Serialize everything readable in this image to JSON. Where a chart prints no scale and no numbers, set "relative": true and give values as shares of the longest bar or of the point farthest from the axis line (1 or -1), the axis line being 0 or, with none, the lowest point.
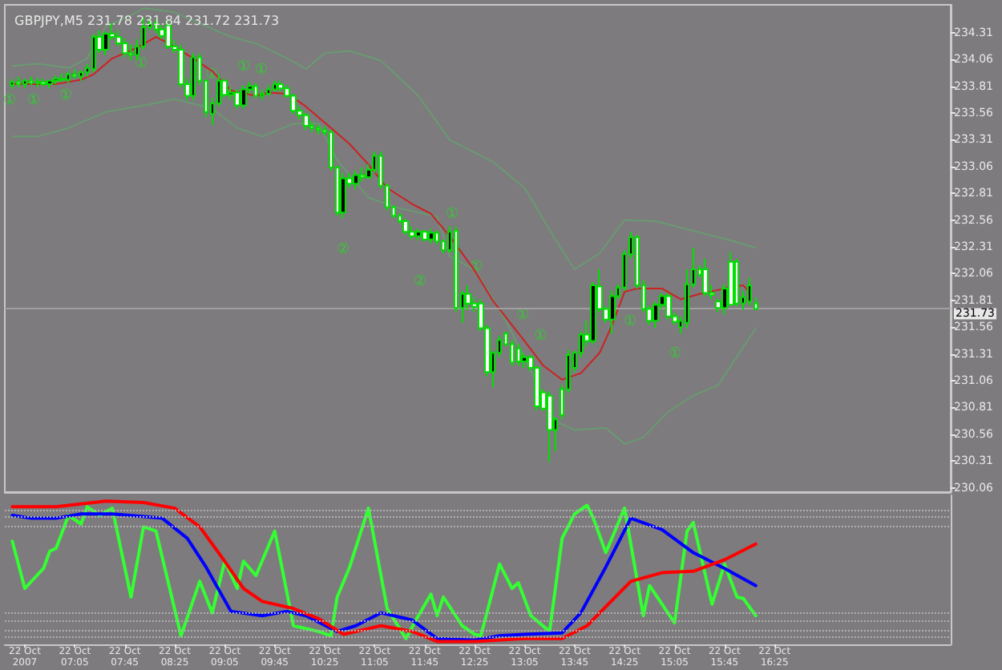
{
  "chart_data": [
    {
      "type": "candlestick",
      "title": "GBPJPY,M5 231.78 231.84 231.72 231.73",
      "xlim": [
        "2007-10-22T06:09",
        "2007-10-22T18:46"
      ],
      "ylim": [
        230.02,
        234.57
      ],
      "yticks": [
        230.06,
        230.31,
        230.56,
        230.81,
        231.06,
        231.31,
        231.56,
        231.81,
        232.06,
        232.31,
        232.56,
        232.81,
        233.06,
        233.31,
        233.56,
        233.81,
        234.06,
        234.31
      ],
      "tick_labels": "y",
      "ref_lines": [
        {
          "axis": "y",
          "value": 231.73,
          "label": "231.73",
          "color": "#a0a0a0",
          "line_style": "solid"
        }
      ],
      "annotations": [
        "①",
        "①",
        "①",
        "①",
        "①",
        "①",
        "①",
        "①",
        "②",
        "①",
        "②",
        "①",
        "①",
        "①",
        "①"
      ],
      "series": [
        {
          "type": "line",
          "color": "#6a9a72",
          "x": [
            "2007-10-22T06:15",
            "2007-10-22T06:35",
            "2007-10-22T07:00",
            "2007-10-22T07:15",
            "2007-10-22T07:30",
            "2007-10-22T07:50",
            "2007-10-22T08:00",
            "2007-10-22T08:25",
            "2007-10-22T08:40",
            "2007-10-22T09:10",
            "2007-10-22T09:30",
            "2007-10-22T09:55",
            "2007-10-22T10:10",
            "2007-10-22T10:25",
            "2007-10-22T10:45",
            "2007-10-22T11:10",
            "2007-10-22T11:40",
            "2007-10-22T12:05",
            "2007-10-22T12:40",
            "2007-10-22T13:05",
            "2007-10-22T13:30",
            "2007-10-22T13:45",
            "2007-10-22T14:05",
            "2007-10-22T14:25",
            "2007-10-22T14:50",
            "2007-10-22T15:50",
            "2007-10-22T16:10"
          ],
          "values": [
            234.0,
            234.02,
            233.98,
            234.07,
            234.37,
            234.47,
            234.54,
            234.5,
            234.42,
            234.27,
            234.21,
            234.07,
            233.97,
            234.12,
            234.14,
            234.05,
            233.72,
            233.31,
            233.1,
            232.86,
            232.37,
            232.1,
            232.25,
            232.56,
            232.55,
            232.37,
            232.3
          ]
        },
        {
          "type": "line",
          "color": "#6a9a72",
          "x": [
            "2007-10-22T06:15",
            "2007-10-22T06:35",
            "2007-10-22T07:00",
            "2007-10-22T07:30",
            "2007-10-22T08:05",
            "2007-10-22T08:25",
            "2007-10-22T08:55",
            "2007-10-22T09:15",
            "2007-10-22T09:35",
            "2007-10-22T10:00",
            "2007-10-22T10:20",
            "2007-10-22T10:35",
            "2007-10-22T11:00",
            "2007-10-22T11:25",
            "2007-10-22T11:55",
            "2007-10-22T12:05",
            "2007-10-22T12:25",
            "2007-10-22T12:50",
            "2007-10-22T13:30",
            "2007-10-22T13:45",
            "2007-10-22T14:10",
            "2007-10-22T14:25",
            "2007-10-22T14:40",
            "2007-10-22T15:00",
            "2007-10-22T15:20",
            "2007-10-22T15:40",
            "2007-10-22T16:10"
          ],
          "values": [
            233.34,
            233.34,
            233.42,
            233.57,
            233.64,
            233.69,
            233.6,
            233.42,
            233.34,
            233.46,
            233.46,
            233.12,
            232.77,
            232.67,
            232.59,
            232.22,
            232.1,
            231.62,
            230.68,
            230.6,
            230.62,
            230.47,
            230.53,
            230.77,
            230.92,
            231.02,
            231.55
          ]
        },
        {
          "type": "line",
          "color": "#cc2222",
          "x": [
            "2007-10-22T06:15",
            "2007-10-22T06:50",
            "2007-10-22T07:10",
            "2007-10-22T07:20",
            "2007-10-22T07:35",
            "2007-10-22T07:55",
            "2007-10-22T08:10",
            "2007-10-22T08:20",
            "2007-10-22T08:40",
            "2007-10-22T08:55",
            "2007-10-22T09:10",
            "2007-10-22T09:30",
            "2007-10-22T09:40",
            "2007-10-22T09:55",
            "2007-10-22T10:10",
            "2007-10-22T10:25",
            "2007-10-22T10:45",
            "2007-10-22T11:00",
            "2007-10-22T11:15",
            "2007-10-22T11:35",
            "2007-10-22T11:50",
            "2007-10-22T12:05",
            "2007-10-22T12:25",
            "2007-10-22T12:40",
            "2007-10-22T13:05",
            "2007-10-22T13:20",
            "2007-10-22T13:35",
            "2007-10-22T13:50",
            "2007-10-22T14:05",
            "2007-10-22T14:15",
            "2007-10-22T14:25",
            "2007-10-22T14:35",
            "2007-10-22T14:55",
            "2007-10-22T15:10",
            "2007-10-22T15:25",
            "2007-10-22T15:45",
            "2007-10-22T16:00",
            "2007-10-22T16:05"
          ],
          "values": [
            233.83,
            233.83,
            233.87,
            233.92,
            234.07,
            234.17,
            234.27,
            234.21,
            234.07,
            233.95,
            233.77,
            233.72,
            233.75,
            233.74,
            233.62,
            233.47,
            233.27,
            233.08,
            232.86,
            232.71,
            232.62,
            232.41,
            232.09,
            231.8,
            231.43,
            231.2,
            231.07,
            231.13,
            231.32,
            231.58,
            231.89,
            231.92,
            231.92,
            231.82,
            231.87,
            231.92,
            231.95,
            231.89
          ]
        },
        {
          "type": "candlestick",
          "color": "#00e000",
          "x": [
            "2007-10-22T06:15",
            "2007-10-22T06:20",
            "2007-10-22T06:25",
            "2007-10-22T06:30",
            "2007-10-22T06:35",
            "2007-10-22T06:40",
            "2007-10-22T06:45",
            "2007-10-22T06:50",
            "2007-10-22T06:55",
            "2007-10-22T07:00",
            "2007-10-22T07:05",
            "2007-10-22T07:10",
            "2007-10-22T07:15",
            "2007-10-22T07:20",
            "2007-10-22T07:25",
            "2007-10-22T07:30",
            "2007-10-22T07:35",
            "2007-10-22T07:40",
            "2007-10-22T07:45",
            "2007-10-22T07:50",
            "2007-10-22T07:55",
            "2007-10-22T08:00",
            "2007-10-22T08:05",
            "2007-10-22T08:10",
            "2007-10-22T08:15",
            "2007-10-22T08:20",
            "2007-10-22T08:25",
            "2007-10-22T08:30",
            "2007-10-22T08:35",
            "2007-10-22T08:40",
            "2007-10-22T08:45",
            "2007-10-22T08:50",
            "2007-10-22T08:55",
            "2007-10-22T09:00",
            "2007-10-22T09:05",
            "2007-10-22T09:10",
            "2007-10-22T09:15",
            "2007-10-22T09:20",
            "2007-10-22T09:25",
            "2007-10-22T09:30",
            "2007-10-22T09:35",
            "2007-10-22T09:40",
            "2007-10-22T09:45",
            "2007-10-22T09:50",
            "2007-10-22T09:55",
            "2007-10-22T10:00",
            "2007-10-22T10:05",
            "2007-10-22T10:10",
            "2007-10-22T10:15",
            "2007-10-22T10:20",
            "2007-10-22T10:25",
            "2007-10-22T10:30",
            "2007-10-22T10:35",
            "2007-10-22T10:40",
            "2007-10-22T10:45",
            "2007-10-22T10:50",
            "2007-10-22T10:55",
            "2007-10-22T11:00",
            "2007-10-22T11:05",
            "2007-10-22T11:10",
            "2007-10-22T11:15",
            "2007-10-22T11:20",
            "2007-10-22T11:25",
            "2007-10-22T11:30",
            "2007-10-22T11:35",
            "2007-10-22T11:40",
            "2007-10-22T11:45",
            "2007-10-22T11:50",
            "2007-10-22T11:55",
            "2007-10-22T12:00",
            "2007-10-22T12:05",
            "2007-10-22T12:10",
            "2007-10-22T12:15",
            "2007-10-22T12:20",
            "2007-10-22T12:25",
            "2007-10-22T12:30",
            "2007-10-22T12:35",
            "2007-10-22T12:40",
            "2007-10-22T12:45",
            "2007-10-22T12:50",
            "2007-10-22T12:55",
            "2007-10-22T13:00",
            "2007-10-22T13:05",
            "2007-10-22T13:10",
            "2007-10-22T13:15",
            "2007-10-22T13:20",
            "2007-10-22T13:25",
            "2007-10-22T13:30",
            "2007-10-22T13:35",
            "2007-10-22T13:40",
            "2007-10-22T13:45",
            "2007-10-22T13:50",
            "2007-10-22T13:55",
            "2007-10-22T14:00",
            "2007-10-22T14:05",
            "2007-10-22T14:10",
            "2007-10-22T14:15",
            "2007-10-22T14:20",
            "2007-10-22T14:25",
            "2007-10-22T14:30",
            "2007-10-22T14:35",
            "2007-10-22T14:40",
            "2007-10-22T14:45",
            "2007-10-22T14:50",
            "2007-10-22T14:55",
            "2007-10-22T15:00",
            "2007-10-22T15:05",
            "2007-10-22T15:10",
            "2007-10-22T15:15",
            "2007-10-22T15:20",
            "2007-10-22T15:25",
            "2007-10-22T15:30",
            "2007-10-22T15:35",
            "2007-10-22T15:40",
            "2007-10-22T15:45",
            "2007-10-22T15:50",
            "2007-10-22T15:55",
            "2007-10-22T16:00",
            "2007-10-22T16:05",
            "2007-10-22T16:10"
          ],
          "ohlc": [
            [
              233.82,
              233.88,
              233.78,
              233.85
            ],
            [
              233.85,
              233.9,
              233.8,
              233.83
            ],
            [
              233.83,
              233.88,
              233.79,
              233.86
            ],
            [
              233.86,
              233.9,
              233.82,
              233.84
            ],
            [
              233.84,
              233.89,
              233.8,
              233.85
            ],
            [
              233.85,
              233.88,
              233.81,
              233.83
            ],
            [
              233.83,
              233.87,
              233.79,
              233.86
            ],
            [
              233.86,
              233.91,
              233.83,
              233.88
            ],
            [
              233.88,
              233.93,
              233.85,
              233.87
            ],
            [
              233.87,
              233.95,
              233.84,
              233.92
            ],
            [
              233.92,
              233.97,
              233.88,
              233.9
            ],
            [
              233.9,
              233.96,
              233.86,
              233.94
            ],
            [
              233.94,
              234.02,
              233.9,
              233.98
            ],
            [
              233.97,
              234.3,
              233.94,
              234.27
            ],
            [
              234.27,
              234.33,
              234.12,
              234.15
            ],
            [
              234.15,
              234.32,
              234.1,
              234.3
            ],
            [
              234.3,
              234.4,
              234.24,
              234.27
            ],
            [
              234.27,
              234.33,
              234.18,
              234.21
            ],
            [
              234.21,
              234.26,
              234.08,
              234.12
            ],
            [
              234.12,
              234.2,
              234.05,
              234.1
            ],
            [
              234.1,
              234.25,
              234.05,
              234.18
            ],
            [
              234.18,
              234.45,
              234.15,
              234.36
            ],
            [
              234.36,
              234.45,
              234.33,
              234.4
            ],
            [
              234.4,
              234.44,
              234.3,
              234.34
            ],
            [
              234.34,
              234.38,
              234.25,
              234.28
            ],
            [
              234.38,
              234.42,
              234.16,
              234.18
            ],
            [
              234.18,
              234.24,
              234.12,
              234.15
            ],
            [
              234.15,
              234.2,
              233.8,
              233.83
            ],
            [
              233.83,
              233.88,
              233.68,
              233.72
            ],
            [
              233.72,
              234.12,
              233.68,
              234.08
            ],
            [
              234.08,
              234.12,
              233.82,
              233.86
            ],
            [
              233.86,
              233.88,
              233.52,
              233.57
            ],
            [
              233.55,
              233.7,
              233.45,
              233.65
            ],
            [
              233.65,
              233.92,
              233.62,
              233.86
            ],
            [
              233.86,
              233.88,
              233.7,
              233.73
            ],
            [
              233.73,
              233.8,
              233.68,
              233.75
            ],
            [
              233.75,
              233.78,
              233.6,
              233.63
            ],
            [
              233.63,
              233.82,
              233.6,
              233.78
            ],
            [
              233.78,
              233.85,
              233.74,
              233.81
            ],
            [
              233.81,
              233.84,
              233.7,
              233.72
            ],
            [
              233.72,
              233.78,
              233.68,
              233.74
            ],
            [
              233.74,
              233.82,
              233.72,
              233.78
            ],
            [
              233.78,
              233.86,
              233.76,
              233.83
            ],
            [
              233.83,
              233.86,
              233.76,
              233.79
            ],
            [
              233.79,
              233.82,
              233.7,
              233.72
            ],
            [
              233.72,
              233.74,
              233.55,
              233.58
            ],
            [
              233.58,
              233.62,
              233.5,
              233.54
            ],
            [
              233.54,
              233.56,
              233.4,
              233.44
            ],
            [
              233.44,
              233.48,
              233.38,
              233.42
            ],
            [
              233.42,
              233.45,
              233.36,
              233.4
            ],
            [
              233.4,
              233.44,
              233.35,
              233.38
            ],
            [
              233.38,
              233.4,
              233.02,
              233.05
            ],
            [
              233.05,
              233.07,
              232.6,
              232.63
            ],
            [
              232.63,
              233.0,
              232.58,
              232.95
            ],
            [
              232.95,
              233.0,
              232.86,
              232.9
            ],
            [
              232.9,
              233.02,
              232.85,
              232.98
            ],
            [
              232.98,
              233.05,
              232.92,
              232.96
            ],
            [
              232.96,
              233.08,
              232.94,
              233.03
            ],
            [
              233.03,
              233.2,
              233.0,
              233.16
            ],
            [
              233.16,
              233.2,
              232.85,
              232.88
            ],
            [
              232.88,
              232.9,
              232.65,
              232.68
            ],
            [
              232.68,
              232.7,
              232.58,
              232.6
            ],
            [
              232.6,
              232.63,
              232.52,
              232.55
            ],
            [
              232.55,
              232.57,
              232.42,
              232.45
            ],
            [
              232.45,
              232.5,
              232.38,
              232.41
            ],
            [
              232.41,
              232.48,
              232.37,
              232.45
            ],
            [
              232.45,
              232.47,
              232.36,
              232.38
            ],
            [
              232.38,
              232.48,
              232.34,
              232.44
            ],
            [
              232.44,
              232.46,
              232.33,
              232.36
            ],
            [
              232.36,
              232.38,
              232.25,
              232.28
            ],
            [
              232.28,
              232.5,
              232.25,
              232.45
            ],
            [
              232.46,
              232.5,
              231.7,
              231.74
            ],
            [
              231.74,
              231.9,
              231.6,
              231.87
            ],
            [
              231.87,
              231.95,
              231.72,
              231.78
            ],
            [
              231.78,
              231.84,
              231.7,
              231.75
            ],
            [
              231.78,
              231.82,
              231.52,
              231.55
            ],
            [
              231.55,
              231.58,
              231.1,
              231.14
            ],
            [
              231.14,
              231.34,
              231.0,
              231.32
            ],
            [
              231.32,
              231.48,
              231.28,
              231.44
            ],
            [
              231.5,
              231.52,
              231.38,
              231.4
            ],
            [
              231.4,
              231.44,
              231.2,
              231.23
            ],
            [
              231.36,
              231.4,
              231.2,
              231.24
            ],
            [
              231.24,
              231.32,
              231.18,
              231.28
            ],
            [
              231.28,
              231.3,
              231.15,
              231.18
            ],
            [
              231.18,
              231.2,
              230.78,
              230.82
            ],
            [
              230.95,
              230.98,
              230.78,
              230.8
            ],
            [
              230.92,
              230.96,
              230.3,
              230.6
            ],
            [
              230.6,
              230.72,
              230.4,
              230.7
            ],
            [
              230.98,
              231.02,
              230.7,
              230.74
            ],
            [
              230.98,
              231.35,
              230.95,
              231.3
            ],
            [
              231.18,
              231.34,
              231.14,
              231.32
            ],
            [
              231.32,
              231.52,
              231.28,
              231.49
            ],
            [
              231.49,
              231.62,
              231.38,
              231.43
            ],
            [
              231.43,
              231.98,
              231.4,
              231.95
            ],
            [
              231.94,
              232.1,
              231.7,
              231.73
            ],
            [
              231.73,
              231.76,
              231.6,
              231.63
            ],
            [
              231.63,
              231.9,
              231.5,
              231.85
            ],
            [
              231.85,
              231.96,
              231.82,
              231.93
            ],
            [
              231.93,
              232.28,
              231.9,
              232.24
            ],
            [
              232.24,
              232.45,
              232.2,
              232.4
            ],
            [
              232.4,
              232.42,
              231.92,
              231.95
            ],
            [
              231.95,
              232.0,
              231.7,
              231.73
            ],
            [
              231.73,
              231.76,
              231.58,
              231.62
            ],
            [
              231.62,
              231.8,
              231.55,
              231.77
            ],
            [
              231.77,
              231.88,
              231.73,
              231.85
            ],
            [
              231.85,
              231.88,
              231.63,
              231.66
            ],
            [
              231.66,
              231.7,
              231.58,
              231.61
            ],
            [
              231.56,
              231.66,
              231.5,
              231.62
            ],
            [
              231.6,
              232.1,
              231.55,
              231.96
            ],
            [
              231.96,
              232.3,
              231.93,
              232.1
            ],
            [
              232.1,
              232.14,
              232.02,
              232.05
            ],
            [
              232.1,
              232.2,
              231.85,
              231.88
            ],
            [
              231.88,
              231.95,
              231.82,
              231.86
            ],
            [
              231.8,
              231.83,
              231.7,
              231.74
            ],
            [
              231.74,
              231.96,
              231.68,
              231.92
            ],
            [
              232.17,
              232.26,
              231.76,
              231.77
            ],
            [
              232.17,
              232.2,
              231.75,
              231.78
            ],
            [
              231.78,
              231.9,
              231.72,
              231.84
            ],
            [
              231.8,
              232.02,
              231.76,
              231.95
            ],
            [
              231.78,
              231.84,
              231.72,
              231.73
            ]
          ],
          "colors": [
            "#000000",
            "#ffffff",
            "#000000",
            "#ffffff",
            "#000000",
            "#ffffff",
            "#000000",
            "#000000",
            "#ffffff",
            "#000000",
            "#ffffff",
            "#000000",
            "#000000",
            "#000000",
            "#ffffff",
            "#000000",
            "#ffffff",
            "#ffffff",
            "#ffffff",
            "#ffffff",
            "#000000",
            "#000000",
            "#000000",
            "#ffffff",
            "#ffffff",
            "#ffffff",
            "#ffffff",
            "#ffffff",
            "#ffffff",
            "#000000",
            "#ffffff",
            "#ffffff",
            "#000000",
            "#000000",
            "#ffffff",
            "#000000",
            "#ffffff",
            "#000000",
            "#000000",
            "#ffffff",
            "#000000",
            "#000000",
            "#000000",
            "#ffffff",
            "#ffffff",
            "#ffffff",
            "#ffffff",
            "#ffffff",
            "#ffffff",
            "#ffffff",
            "#ffffff",
            "#ffffff",
            "#ffffff",
            "#000000",
            "#ffffff",
            "#000000",
            "#ffffff",
            "#000000",
            "#000000",
            "#ffffff",
            "#ffffff",
            "#ffffff",
            "#ffffff",
            "#ffffff",
            "#ffffff",
            "#000000",
            "#ffffff",
            "#000000",
            "#ffffff",
            "#ffffff",
            "#000000",
            "#ffffff",
            "#000000",
            "#ffffff",
            "#ffffff",
            "#ffffff",
            "#ffffff",
            "#000000",
            "#000000",
            "#ffffff",
            "#ffffff",
            "#ffffff",
            "#000000",
            "#ffffff",
            "#ffffff",
            "#ffffff",
            "#ffffff",
            "#000000",
            "#ffffff",
            "#000000",
            "#000000",
            "#000000",
            "#ffffff",
            "#000000",
            "#ffffff",
            "#ffffff",
            "#000000",
            "#000000",
            "#000000",
            "#000000",
            "#ffffff",
            "#ffffff",
            "#ffffff",
            "#000000",
            "#000000",
            "#ffffff",
            "#ffffff",
            "#000000",
            "#000000",
            "#000000",
            "#ffffff",
            "#ffffff",
            "#ffffff",
            "#ffffff",
            "#000000",
            "#ffffff",
            "#ffffff",
            "#000000",
            "#000000",
            "#ffffff"
          ]
        }
      ]
    },
    {
      "type": "line",
      "relative": true,
      "tick_labels": "x",
      "xlim": [
        "2007-10-22T06:09",
        "2007-10-22T18:46"
      ],
      "xticks": [
        {
          "value": "2007-10-22T06:25",
          "label": "22 Oct 2007"
        },
        {
          "value": "2007-10-22T07:05",
          "label": "22 Oct 07:05"
        },
        {
          "value": "2007-10-22T07:45",
          "label": "22 Oct 07:45"
        },
        {
          "value": "2007-10-22T08:25",
          "label": "22 Oct 08:25"
        },
        {
          "value": "2007-10-22T09:05",
          "label": "22 Oct 09:05"
        },
        {
          "value": "2007-10-22T09:45",
          "label": "22 Oct 09:45"
        },
        {
          "value": "2007-10-22T10:25",
          "label": "22 Oct 10:25"
        },
        {
          "value": "2007-10-22T11:05",
          "label": "22 Oct 11:05"
        },
        {
          "value": "2007-10-22T11:45",
          "label": "22 Oct 11:45"
        },
        {
          "value": "2007-10-22T12:25",
          "label": "22 Oct 12:25"
        },
        {
          "value": "2007-10-22T13:05",
          "label": "22 Oct 13:05"
        },
        {
          "value": "2007-10-22T13:45",
          "label": "22 Oct 13:45"
        },
        {
          "value": "2007-10-22T14:25",
          "label": "22 Oct 14:25"
        },
        {
          "value": "2007-10-22T15:05",
          "label": "22 Oct 15:05"
        },
        {
          "value": "2007-10-22T15:45",
          "label": "22 Oct 15:45"
        },
        {
          "value": "2007-10-22T16:25",
          "label": "22 Oct 16:25"
        }
      ],
      "ref_lines": [
        {
          "axis": "y",
          "value": 0.94,
          "color": "#b0b0b0",
          "line_style": "dotted"
        },
        {
          "axis": "y",
          "value": 0.89,
          "color": "#b0b0b0",
          "line_style": "dotted"
        },
        {
          "axis": "y",
          "value": 0.82,
          "color": "#b0b0b0",
          "line_style": "dotted"
        },
        {
          "axis": "y",
          "value": 0.22,
          "color": "#b0b0b0",
          "line_style": "dotted"
        },
        {
          "axis": "y",
          "value": 0.16,
          "color": "#b0b0b0",
          "line_style": "dotted"
        },
        {
          "axis": "y",
          "value": 0.1,
          "color": "#b0b0b0",
          "line_style": "dotted"
        },
        {
          "axis": "y",
          "value": 0.05,
          "color": "#b0b0b0",
          "line_style": "dotted"
        }
      ],
      "series": [
        {
          "color": "#33ff33",
          "x": [
            "2007-10-22T06:15",
            "2007-10-22T06:25",
            "2007-10-22T06:40",
            "2007-10-22T06:45",
            "2007-10-22T06:50",
            "2007-10-22T07:00",
            "2007-10-22T07:10",
            "2007-10-22T07:15",
            "2007-10-22T07:25",
            "2007-10-22T07:35",
            "2007-10-22T07:50",
            "2007-10-22T08:00",
            "2007-10-22T08:10",
            "2007-10-22T08:30",
            "2007-10-22T08:45",
            "2007-10-22T08:55",
            "2007-10-22T09:05",
            "2007-10-22T09:15",
            "2007-10-22T09:20",
            "2007-10-22T09:30",
            "2007-10-22T09:45",
            "2007-10-22T10:00",
            "2007-10-22T10:20",
            "2007-10-22T10:30",
            "2007-10-22T10:35",
            "2007-10-22T10:45",
            "2007-10-22T11:00",
            "2007-10-22T11:15",
            "2007-10-22T11:30",
            "2007-10-22T11:40",
            "2007-10-22T11:50",
            "2007-10-22T11:55",
            "2007-10-22T12:00",
            "2007-10-22T12:15",
            "2007-10-22T12:25",
            "2007-10-22T12:30",
            "2007-10-22T12:45",
            "2007-10-22T12:55",
            "2007-10-22T13:00",
            "2007-10-22T13:10",
            "2007-10-22T13:25",
            "2007-10-22T13:35",
            "2007-10-22T13:45",
            "2007-10-22T13:55",
            "2007-10-22T14:00",
            "2007-10-22T14:10",
            "2007-10-22T14:25",
            "2007-10-22T14:40",
            "2007-10-22T14:45",
            "2007-10-22T15:05",
            "2007-10-22T15:15",
            "2007-10-22T15:20",
            "2007-10-22T15:35",
            "2007-10-22T15:45",
            "2007-10-22T15:55",
            "2007-10-22T16:00",
            "2007-10-22T16:10"
          ],
          "values": [
            0.72,
            0.39,
            0.53,
            0.65,
            0.67,
            0.9,
            0.84,
            0.96,
            0.9,
            0.95,
            0.33,
            0.82,
            0.79,
            0.06,
            0.44,
            0.22,
            0.58,
            0.39,
            0.58,
            0.48,
            0.79,
            0.13,
            0.09,
            0.06,
            0.33,
            0.54,
            0.95,
            0.25,
            0.04,
            0.2,
            0.35,
            0.2,
            0.33,
            0.13,
            0.07,
            0.06,
            0.56,
            0.39,
            0.43,
            0.2,
            0.09,
            0.74,
            0.91,
            0.97,
            0.88,
            0.64,
            0.95,
            0.2,
            0.41,
            0.15,
            0.79,
            0.85,
            0.28,
            0.56,
            0.33,
            0.32,
            0.2
          ]
        },
        {
          "color": "#0000ff",
          "x": [
            "2007-10-22T06:15",
            "2007-10-22T06:30",
            "2007-10-22T06:50",
            "2007-10-22T07:10",
            "2007-10-22T07:35",
            "2007-10-22T08:15",
            "2007-10-22T08:35",
            "2007-10-22T08:50",
            "2007-10-22T09:10",
            "2007-10-22T09:35",
            "2007-10-22T09:55",
            "2007-10-22T10:10",
            "2007-10-22T10:35",
            "2007-10-22T10:50",
            "2007-10-22T11:10",
            "2007-10-22T11:35",
            "2007-10-22T11:55",
            "2007-10-22T12:25",
            "2007-10-22T12:45",
            "2007-10-22T13:05",
            "2007-10-22T13:35",
            "2007-10-22T13:50",
            "2007-10-22T14:10",
            "2007-10-22T14:30",
            "2007-10-22T14:55",
            "2007-10-22T15:20",
            "2007-10-22T15:45",
            "2007-10-22T16:10"
          ],
          "values": [
            0.9,
            0.88,
            0.88,
            0.91,
            0.91,
            0.88,
            0.74,
            0.54,
            0.23,
            0.2,
            0.23,
            0.2,
            0.09,
            0.13,
            0.22,
            0.17,
            0.04,
            0.03,
            0.06,
            0.07,
            0.08,
            0.22,
            0.54,
            0.88,
            0.8,
            0.64,
            0.53,
            0.41
          ]
        },
        {
          "color": "#ff0000",
          "x": [
            "2007-10-22T06:15",
            "2007-10-22T06:50",
            "2007-10-22T07:30",
            "2007-10-22T08:00",
            "2007-10-22T08:25",
            "2007-10-22T08:45",
            "2007-10-22T09:05",
            "2007-10-22T09:20",
            "2007-10-22T09:35",
            "2007-10-22T10:00",
            "2007-10-22T10:20",
            "2007-10-22T10:40",
            "2007-10-22T11:10",
            "2007-10-22T11:35",
            "2007-10-22T11:55",
            "2007-10-22T12:25",
            "2007-10-22T13:05",
            "2007-10-22T13:35",
            "2007-10-22T13:55",
            "2007-10-22T14:30",
            "2007-10-22T14:55",
            "2007-10-22T15:20",
            "2007-10-22T15:45",
            "2007-10-22T16:10"
          ],
          "values": [
            0.96,
            0.96,
            1.0,
            0.99,
            0.95,
            0.82,
            0.58,
            0.39,
            0.3,
            0.25,
            0.18,
            0.07,
            0.13,
            0.09,
            0.02,
            0.02,
            0.04,
            0.04,
            0.13,
            0.44,
            0.5,
            0.51,
            0.59,
            0.7
          ]
        }
      ]
    }
  ]
}
